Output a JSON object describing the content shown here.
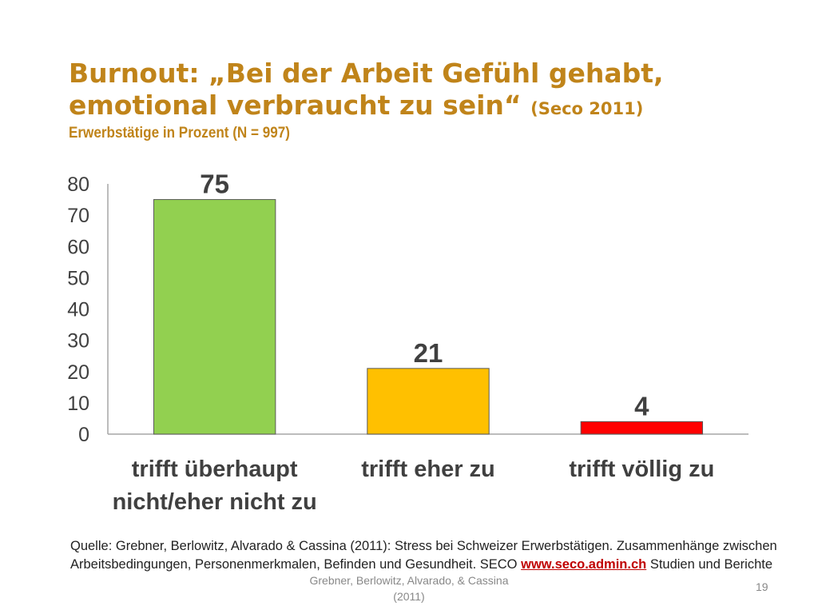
{
  "slide": {
    "title": "Burnout: „Bei der Arbeit Gefühl gehabt, emotional verbraucht zu sein“",
    "title_source": "(Seco 2011)",
    "subtitle": "Erwerbstätige in Prozent (N = 997)",
    "source_text": "Quelle: Grebner, Berlowitz, Alvarado & Cassina (2011): Stress bei Schweizer Erwerbstätigen. Zusammenhänge zwischen Arbeitsbedingungen, Personenmerkmalen, Befinden und Gesundheit. SECO",
    "source_link": "www.seco.admin.ch",
    "source_tail": "Studien und Berichte",
    "footer": "Grebner, Berlowitz, Alvarado, & Cassina (2011)",
    "page_number": "19"
  },
  "chart_data": {
    "type": "bar",
    "categories": [
      "trifft überhaupt nicht/eher nicht zu",
      "trifft eher zu",
      "trifft völlig zu"
    ],
    "category_lines": [
      [
        "trifft überhaupt",
        "nicht/eher nicht zu"
      ],
      [
        "trifft eher zu"
      ],
      [
        "trifft völlig zu"
      ]
    ],
    "values": [
      75,
      21,
      4
    ],
    "data_labels": [
      "75",
      "21",
      "4"
    ],
    "colors": [
      "#92d050",
      "#ffc000",
      "#ff0000"
    ],
    "yticks": [
      0,
      10,
      20,
      30,
      40,
      50,
      60,
      70,
      80
    ],
    "ylim": [
      0,
      80
    ],
    "grid": false,
    "legend": "none"
  }
}
